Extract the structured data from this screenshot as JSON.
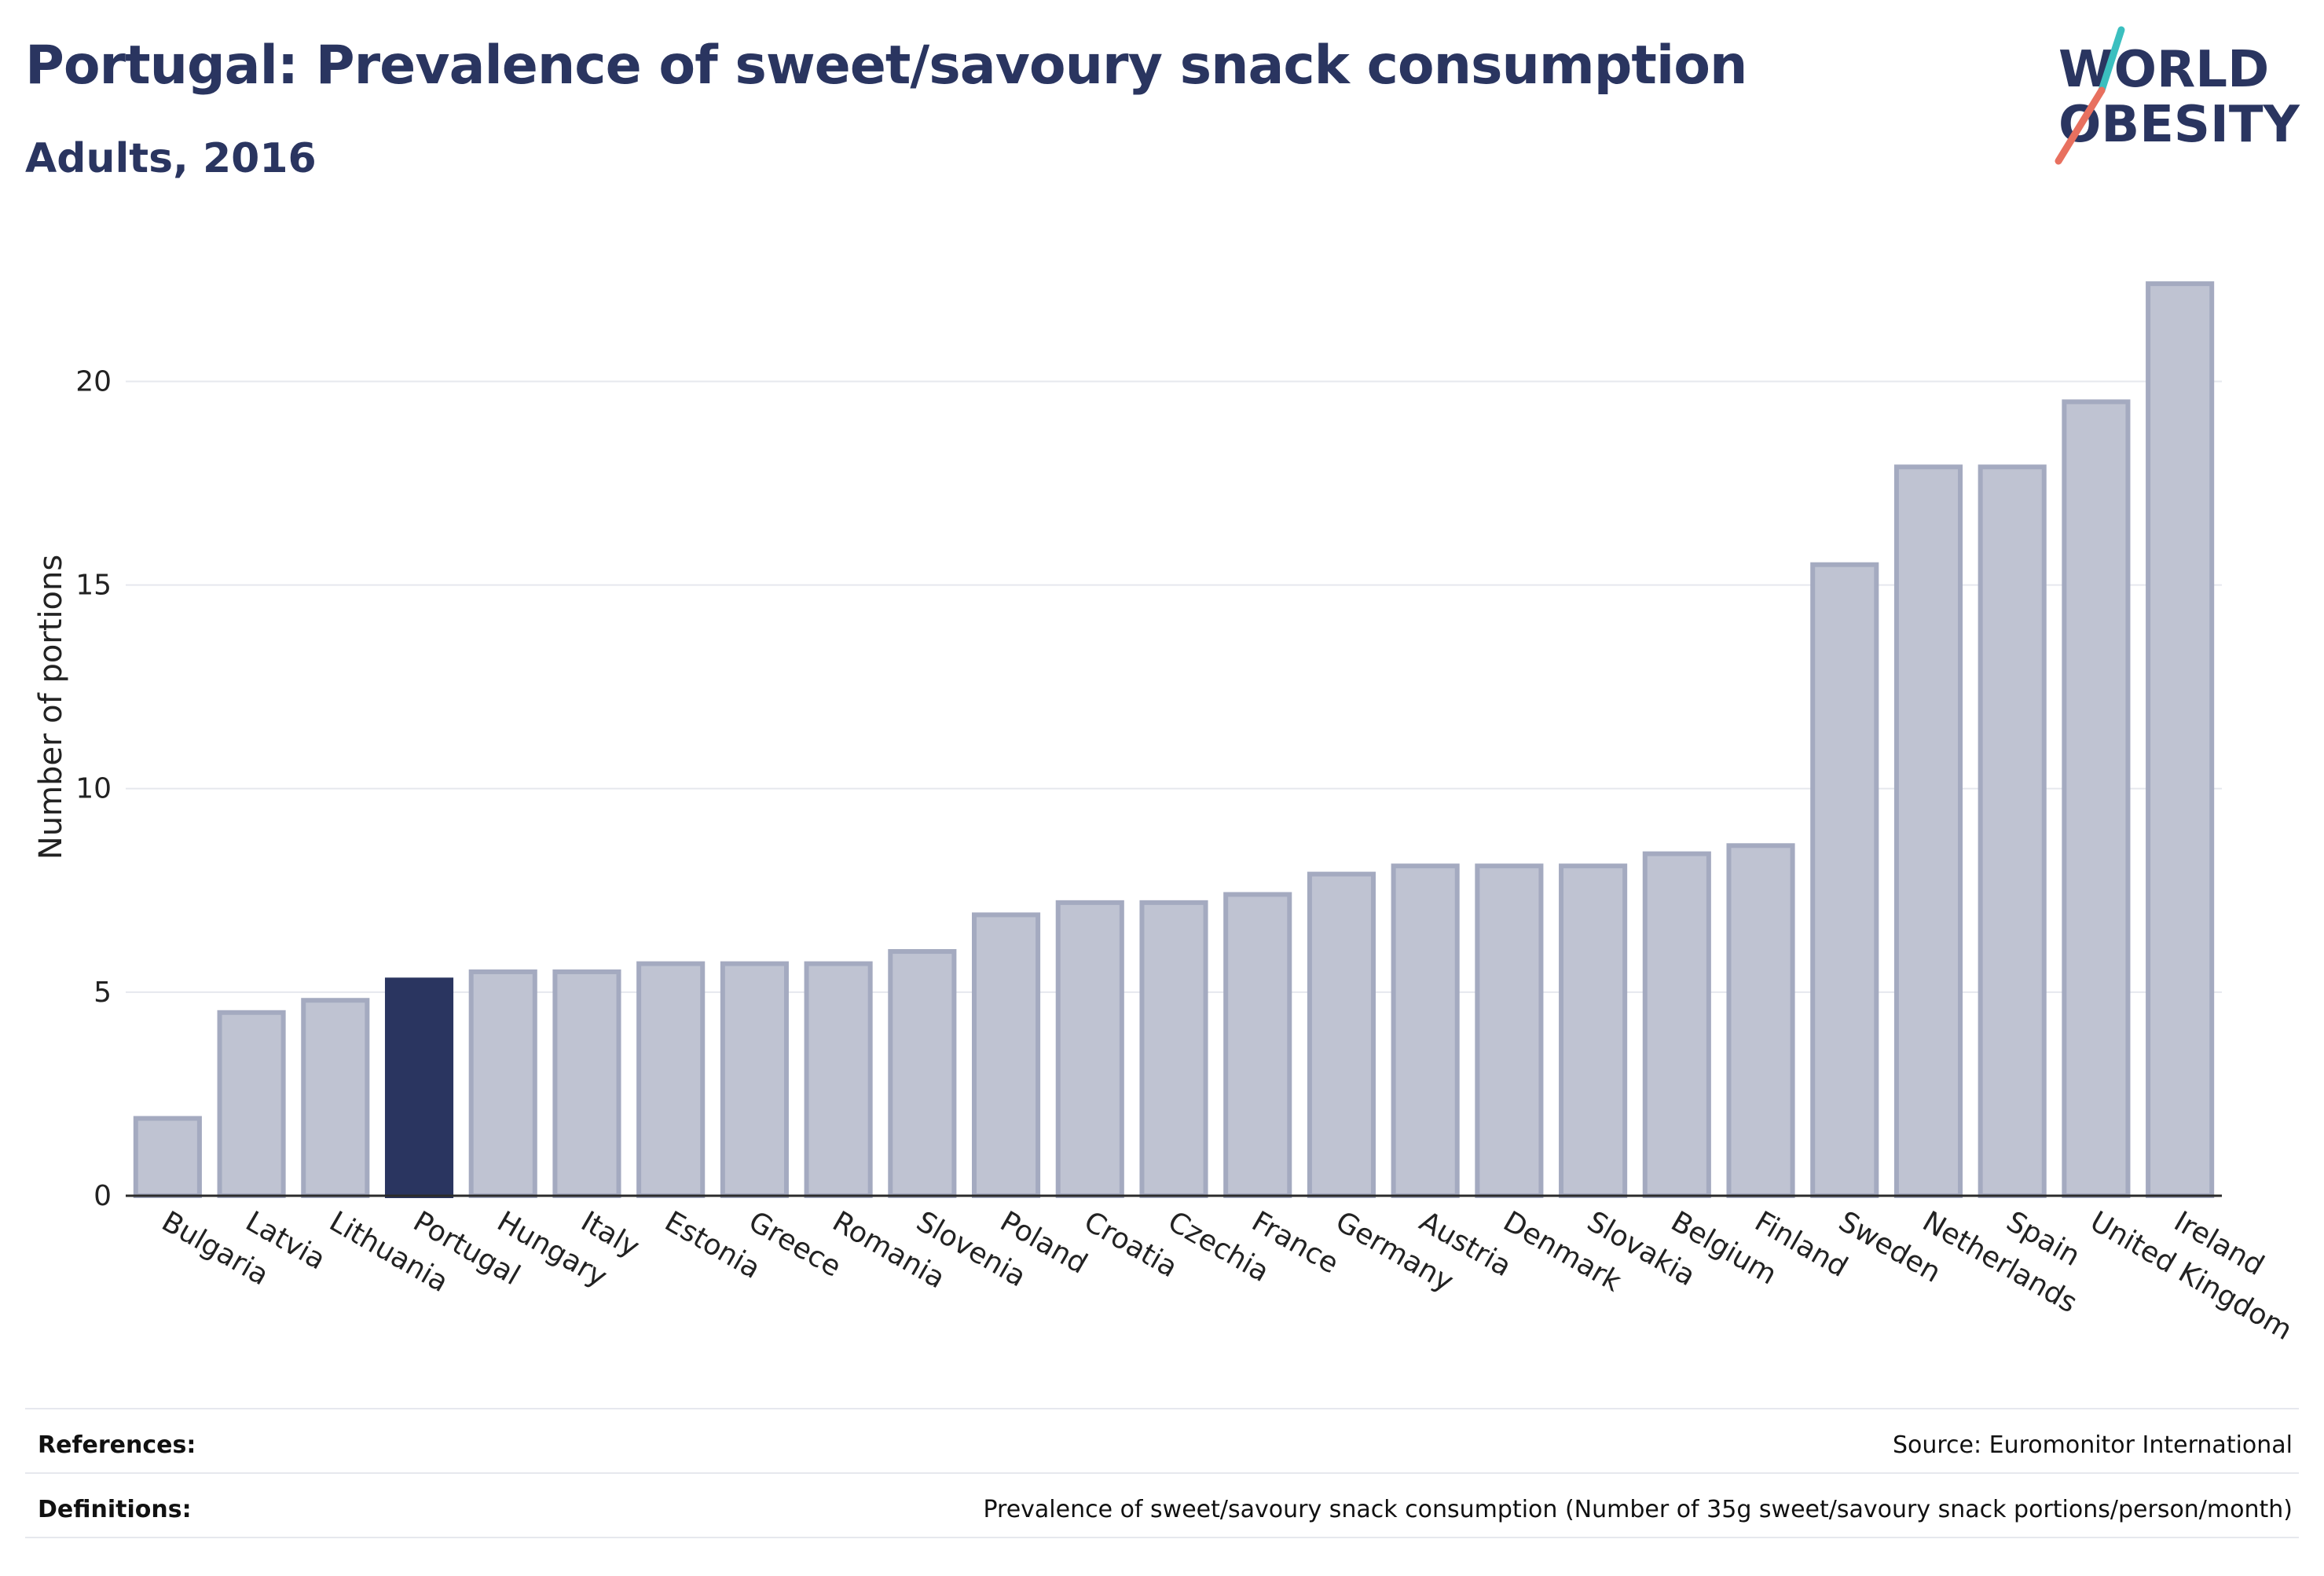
{
  "header": {
    "title": "Portugal: Prevalence of sweet/savoury snack consumption",
    "subtitle": "Adults, 2016"
  },
  "logo": {
    "line1": "WORLD",
    "line2": "OBESITY"
  },
  "colors": {
    "highlight": "#2a3560",
    "bar_fill": "#bfc3d2",
    "bar_stroke": "#a4aac0",
    "grid": "#e6e8ee",
    "logo_teal": "#3bbfbf",
    "logo_red": "#e8705f"
  },
  "chart_data": {
    "type": "bar",
    "title": "Portugal: Prevalence of sweet/savoury snack consumption",
    "subtitle": "Adults, 2016",
    "xlabel": "",
    "ylabel": "Number of portions",
    "ylim": [
      0,
      23
    ],
    "yticks": [
      0,
      5,
      10,
      15,
      20
    ],
    "grid": true,
    "highlight": "Portugal",
    "categories": [
      "Bulgaria",
      "Latvia",
      "Lithuania",
      "Portugal",
      "Hungary",
      "Italy",
      "Estonia",
      "Greece",
      "Romania",
      "Slovenia",
      "Poland",
      "Croatia",
      "Czechia",
      "France",
      "Germany",
      "Austria",
      "Denmark",
      "Slovakia",
      "Belgium",
      "Finland",
      "Sweden",
      "Netherlands",
      "Spain",
      "United Kingdom",
      "Ireland"
    ],
    "values": [
      1.9,
      4.5,
      4.8,
      5.3,
      5.5,
      5.5,
      5.7,
      5.7,
      5.7,
      6.0,
      6.9,
      7.2,
      7.2,
      7.4,
      7.9,
      8.1,
      8.1,
      8.1,
      8.4,
      8.6,
      15.5,
      17.9,
      17.9,
      19.5,
      22.4
    ]
  },
  "footer": {
    "references_label": "References:",
    "references_value": "Source: Euromonitor International",
    "definitions_label": "Definitions:",
    "definitions_value": "Prevalence of sweet/savoury snack consumption (Number of 35g sweet/savoury snack portions/person/month)"
  }
}
